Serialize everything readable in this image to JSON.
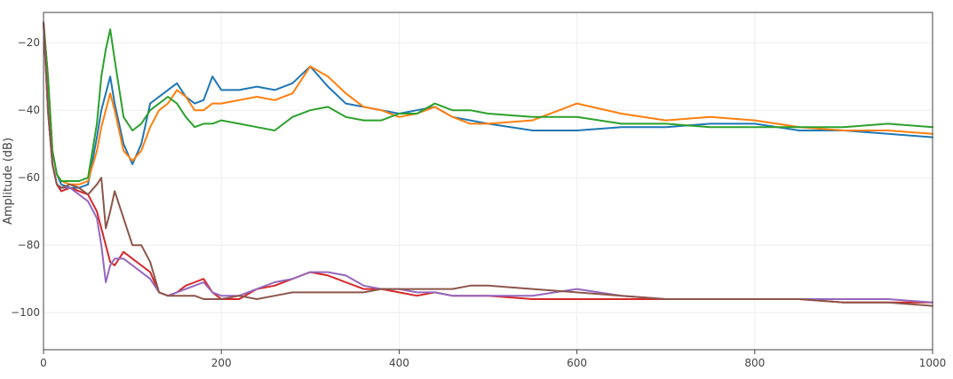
{
  "chart_data": {
    "type": "line",
    "title": "",
    "xlabel": "",
    "ylabel": "Amplitude (dB)",
    "xlim": [
      0,
      1000
    ],
    "ylim": [
      -111,
      -11
    ],
    "x_ticks": [
      0,
      200,
      400,
      600,
      800,
      1000
    ],
    "y_ticks": [
      -100,
      -80,
      -60,
      -40,
      -20
    ],
    "grid": true,
    "legend": "none",
    "series": [
      {
        "color": "#1f77b4",
        "x": [
          0,
          5,
          10,
          15,
          20,
          30,
          40,
          50,
          60,
          65,
          70,
          75,
          80,
          90,
          100,
          110,
          120,
          130,
          140,
          150,
          160,
          170,
          180,
          190,
          200,
          220,
          240,
          260,
          280,
          300,
          320,
          340,
          360,
          380,
          400,
          420,
          440,
          460,
          480,
          500,
          550,
          600,
          650,
          700,
          750,
          800,
          850,
          900,
          950,
          1000
        ],
        "y": [
          -14,
          -30,
          -52,
          -59,
          -62,
          -63,
          -63,
          -62,
          -48,
          -40,
          -35,
          -30,
          -38,
          -50,
          -56,
          -50,
          -38,
          -36,
          -34,
          -32,
          -36,
          -38,
          -37,
          -30,
          -34,
          -34,
          -33,
          -34,
          -32,
          -27,
          -33,
          -38,
          -39,
          -40,
          -41,
          -40,
          -39,
          -42,
          -43,
          -44,
          -46,
          -46,
          -45,
          -45,
          -44,
          -44,
          -46,
          -46,
          -47,
          -48
        ]
      },
      {
        "color": "#ff7f0e",
        "x": [
          0,
          5,
          10,
          15,
          20,
          30,
          40,
          50,
          60,
          65,
          70,
          75,
          80,
          90,
          100,
          110,
          120,
          130,
          140,
          150,
          160,
          170,
          180,
          190,
          200,
          220,
          240,
          260,
          280,
          300,
          320,
          340,
          360,
          380,
          400,
          420,
          440,
          460,
          480,
          500,
          550,
          600,
          650,
          700,
          750,
          800,
          850,
          900,
          950,
          1000
        ],
        "y": [
          -14,
          -30,
          -52,
          -59,
          -61,
          -62,
          -62,
          -61,
          -52,
          -45,
          -40,
          -35,
          -40,
          -52,
          -55,
          -52,
          -45,
          -40,
          -38,
          -34,
          -36,
          -40,
          -40,
          -38,
          -38,
          -37,
          -36,
          -37,
          -35,
          -27,
          -30,
          -35,
          -39,
          -40,
          -42,
          -41,
          -39,
          -42,
          -44,
          -44,
          -43,
          -38,
          -41,
          -43,
          -42,
          -43,
          -45,
          -46,
          -46,
          -47
        ]
      },
      {
        "color": "#2ca02c",
        "x": [
          0,
          5,
          10,
          15,
          20,
          30,
          40,
          50,
          60,
          65,
          70,
          75,
          80,
          90,
          100,
          110,
          120,
          130,
          140,
          150,
          160,
          170,
          180,
          190,
          200,
          220,
          240,
          260,
          280,
          300,
          320,
          340,
          360,
          380,
          400,
          420,
          440,
          460,
          480,
          500,
          550,
          600,
          650,
          700,
          750,
          800,
          850,
          900,
          950,
          1000
        ],
        "y": [
          -14,
          -30,
          -52,
          -59,
          -61,
          -61,
          -61,
          -60,
          -44,
          -30,
          -22,
          -16,
          -25,
          -42,
          -46,
          -44,
          -40,
          -38,
          -36,
          -38,
          -42,
          -45,
          -44,
          -44,
          -43,
          -44,
          -45,
          -46,
          -42,
          -40,
          -39,
          -42,
          -43,
          -43,
          -41,
          -41,
          -38,
          -40,
          -40,
          -41,
          -42,
          -42,
          -44,
          -44,
          -45,
          -45,
          -45,
          -45,
          -44,
          -45
        ]
      },
      {
        "color": "#d62728",
        "x": [
          0,
          5,
          10,
          15,
          20,
          30,
          40,
          50,
          60,
          65,
          70,
          75,
          80,
          90,
          100,
          110,
          120,
          130,
          140,
          150,
          160,
          170,
          180,
          190,
          200,
          220,
          240,
          260,
          280,
          300,
          320,
          340,
          360,
          380,
          400,
          420,
          440,
          460,
          480,
          500,
          550,
          600,
          650,
          700,
          750,
          800,
          850,
          900,
          950,
          1000
        ],
        "y": [
          -14,
          -40,
          -56,
          -62,
          -64,
          -63,
          -64,
          -65,
          -70,
          -75,
          -80,
          -85,
          -86,
          -82,
          -84,
          -86,
          -88,
          -94,
          -95,
          -94,
          -92,
          -91,
          -90,
          -94,
          -96,
          -96,
          -93,
          -92,
          -90,
          -88,
          -89,
          -91,
          -93,
          -93,
          -94,
          -95,
          -94,
          -95,
          -95,
          -95,
          -96,
          -96,
          -96,
          -96,
          -96,
          -96,
          -96,
          -97,
          -97,
          -97
        ]
      },
      {
        "color": "#9467bd",
        "x": [
          0,
          5,
          10,
          15,
          20,
          30,
          40,
          50,
          60,
          65,
          70,
          75,
          80,
          90,
          100,
          110,
          120,
          130,
          140,
          150,
          160,
          170,
          180,
          190,
          200,
          220,
          240,
          260,
          280,
          300,
          320,
          340,
          360,
          380,
          400,
          420,
          440,
          460,
          480,
          500,
          550,
          600,
          650,
          700,
          750,
          800,
          850,
          900,
          950,
          1000
        ],
        "y": [
          -14,
          -40,
          -56,
          -62,
          -63,
          -63,
          -65,
          -67,
          -72,
          -80,
          -91,
          -86,
          -84,
          -84,
          -86,
          -88,
          -90,
          -94,
          -95,
          -94,
          -93,
          -92,
          -91,
          -94,
          -95,
          -95,
          -93,
          -91,
          -90,
          -88,
          -88,
          -89,
          -92,
          -93,
          -93,
          -94,
          -94,
          -95,
          -95,
          -95,
          -95,
          -93,
          -95,
          -96,
          -96,
          -96,
          -96,
          -96,
          -96,
          -97
        ]
      },
      {
        "color": "#8c564b",
        "x": [
          0,
          5,
          10,
          15,
          20,
          30,
          40,
          50,
          60,
          65,
          70,
          75,
          80,
          90,
          100,
          110,
          120,
          130,
          140,
          150,
          160,
          170,
          180,
          190,
          200,
          220,
          240,
          260,
          280,
          300,
          320,
          340,
          360,
          380,
          400,
          420,
          440,
          460,
          480,
          500,
          550,
          600,
          650,
          700,
          750,
          800,
          850,
          900,
          950,
          1000
        ],
        "y": [
          -14,
          -40,
          -56,
          -62,
          -63,
          -62,
          -63,
          -65,
          -62,
          -60,
          -75,
          -70,
          -64,
          -72,
          -80,
          -80,
          -85,
          -94,
          -95,
          -95,
          -95,
          -95,
          -96,
          -96,
          -96,
          -95,
          -96,
          -95,
          -94,
          -94,
          -94,
          -94,
          -94,
          -93,
          -93,
          -93,
          -93,
          -93,
          -92,
          -92,
          -93,
          -94,
          -95,
          -96,
          -96,
          -96,
          -96,
          -97,
          -97,
          -98
        ]
      }
    ]
  }
}
